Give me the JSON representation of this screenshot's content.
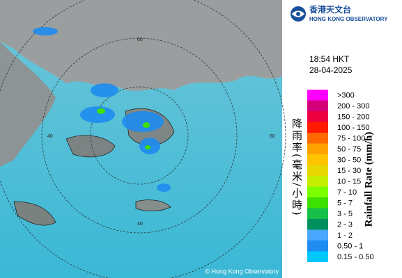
{
  "header": {
    "logo_chinese": "香港天文台",
    "logo_english": "HONG KONG OBSERVATORY"
  },
  "time": "18:54 HKT",
  "date": "28-04-2025",
  "legend": {
    "title_chinese": "降雨率(毫米/小時)",
    "title_english": "Rainfall Rate (mm/h)",
    "items": [
      {
        "label": ">300",
        "color": "#ff00ff"
      },
      {
        "label": "200 - 300",
        "color": "#d4007a"
      },
      {
        "label": "150 - 200",
        "color": "#ee0040"
      },
      {
        "label": "100 - 150",
        "color": "#ff1a00"
      },
      {
        "label": "75 - 100",
        "color": "#ff6a00"
      },
      {
        "label": "50 - 75",
        "color": "#ffa200"
      },
      {
        "label": "30 - 50",
        "color": "#ffc400"
      },
      {
        "label": "15 - 30",
        "color": "#e6d800"
      },
      {
        "label": "10 - 15",
        "color": "#c6ee00"
      },
      {
        "label": "7 - 10",
        "color": "#7cff00"
      },
      {
        "label": "5 - 7",
        "color": "#3ee000"
      },
      {
        "label": "3 - 5",
        "color": "#16c04a"
      },
      {
        "label": "2 - 3",
        "color": "#00905e"
      },
      {
        "label": "1 - 2",
        "color": "#4aa6ff"
      },
      {
        "label": "0.50 - 1",
        "color": "#1e8cf0"
      },
      {
        "label": "0.15 - 0.50",
        "color": "#00c8ff"
      }
    ]
  },
  "map": {
    "copyright": "© Hong Kong Observatory",
    "ring_labels": [
      "60",
      "40",
      "60",
      "40"
    ]
  }
}
